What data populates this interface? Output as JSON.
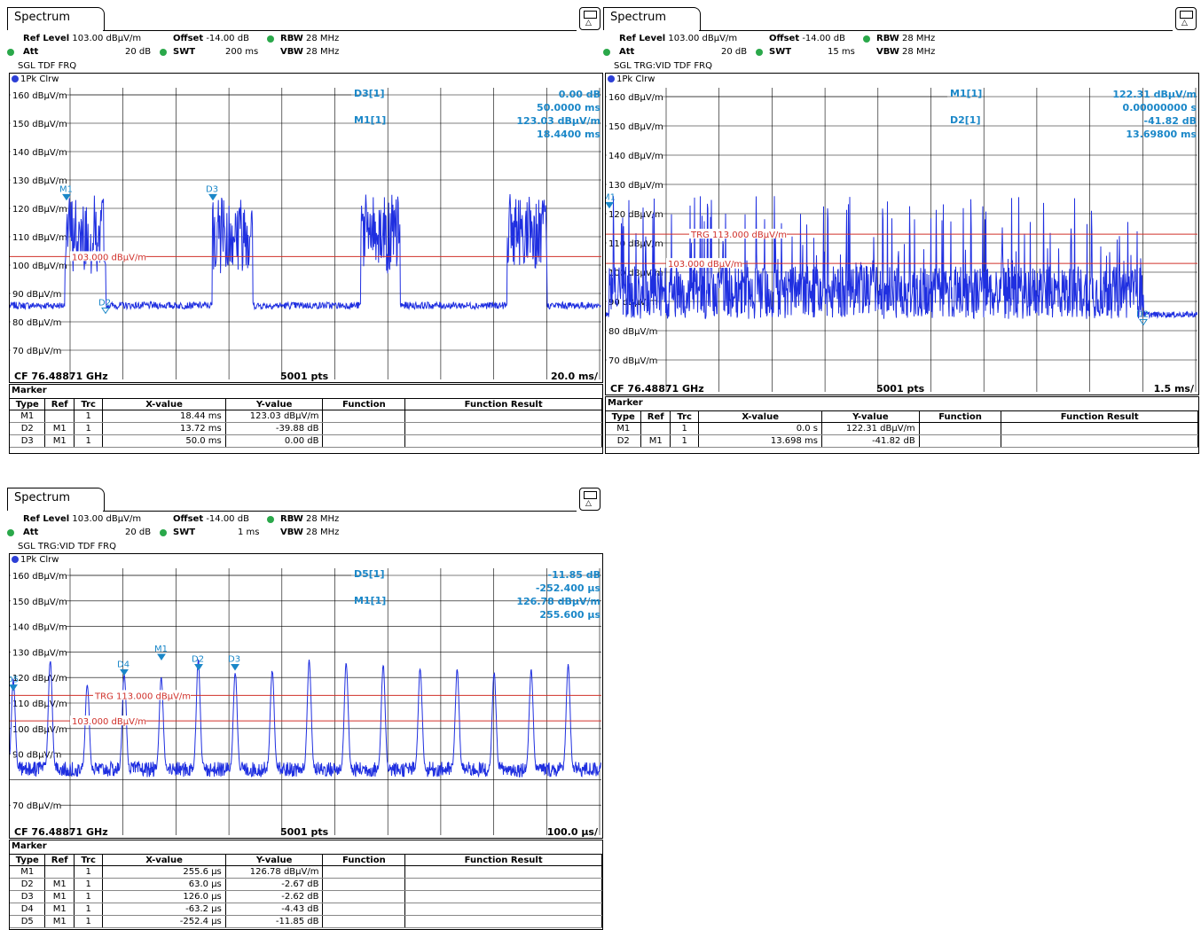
{
  "panels": [
    {
      "id": "p1",
      "tab": "Spectrum",
      "ref_level_label": "Ref Level",
      "ref_level": "103.00 dBµV/m",
      "offset_label": "Offset",
      "offset": "-14.00 dB",
      "rbw_label": "RBW",
      "rbw": "28 MHz",
      "att_label": "Att",
      "att": "20 dB",
      "swt_label": "SWT",
      "swt": "200 ms",
      "vbw_label": "VBW",
      "vbw": "28 MHz",
      "mode": "SGL TDF FRQ",
      "trace": "1Pk Clrw",
      "y_labels": [
        "160 dBµV/m",
        "150 dBµV/m",
        "140 dBµV/m",
        "130 dBµV/m",
        "120 dBµV/m",
        "110 dBµV/m",
        "100 dBµV/m",
        "90 dBµV/m",
        "80 dBµV/m",
        "70 dBµV/m"
      ],
      "marker_info": [
        {
          "name": "D3[1]",
          "l1": "0.00 dB",
          "l2": "50.0000 ms"
        },
        {
          "name": "M1[1]",
          "l1": "123.03 dBµV/m",
          "l2": "18.4400 ms"
        }
      ],
      "lines": [
        {
          "label": "103.000 dBµV/m",
          "level": 103,
          "color": "#d0302a"
        }
      ],
      "markers_on_plot": [
        "M1",
        "D2",
        "D3"
      ],
      "footer": {
        "cf": "CF 76.48871 GHz",
        "pts": "5001 pts",
        "div": "20.0 ms/"
      },
      "table": {
        "title": "Marker",
        "headers": [
          "Type",
          "Ref",
          "Trc",
          "X-value",
          "Y-value",
          "Function",
          "Function Result"
        ],
        "rows": [
          [
            "M1",
            "",
            "1",
            "18.44 ms",
            "123.03 dBµV/m",
            "",
            ""
          ],
          [
            "D2",
            "M1",
            "1",
            "13.72 ms",
            "-39.88 dB",
            "",
            ""
          ],
          [
            "D3",
            "M1",
            "1",
            "50.0 ms",
            "0.00 dB",
            "",
            ""
          ]
        ]
      }
    },
    {
      "id": "p2",
      "tab": "Spectrum",
      "ref_level_label": "Ref Level",
      "ref_level": "103.00 dBµV/m",
      "offset_label": "Offset",
      "offset": "-14.00 dB",
      "rbw_label": "RBW",
      "rbw": "28 MHz",
      "att_label": "Att",
      "att": "20 dB",
      "swt_label": "SWT",
      "swt": "15 ms",
      "vbw_label": "VBW",
      "vbw": "28 MHz",
      "mode": "SGL TRG:VID TDF FRQ",
      "trace": "1Pk Clrw",
      "y_labels": [
        "160 dBµV/m",
        "150 dBµV/m",
        "140 dBµV/m",
        "130 dBµV/m",
        "120 dBµV/m",
        "110 dBµV/m",
        "100 dBµV/m",
        "90 dBµV/m",
        "80 dBµV/m",
        "70 dBµV/m"
      ],
      "marker_info": [
        {
          "name": "M1[1]",
          "l1": "122.31 dBµV/m",
          "l2": "0.00000000 s"
        },
        {
          "name": "D2[1]",
          "l1": "-41.82 dB",
          "l2": "13.69800 ms"
        }
      ],
      "lines": [
        {
          "label": "TRG 113.000 dBµV/m",
          "level": 113,
          "color": "#d0302a"
        },
        {
          "label": "103.000 dBµV/m",
          "level": 103,
          "color": "#d0302a"
        }
      ],
      "markers_on_plot": [
        "M1",
        "D2"
      ],
      "footer": {
        "cf": "CF 76.48871 GHz",
        "pts": "5001 pts",
        "div": "1.5 ms/"
      },
      "table": {
        "title": "Marker",
        "headers": [
          "Type",
          "Ref",
          "Trc",
          "X-value",
          "Y-value",
          "Function",
          "Function Result"
        ],
        "rows": [
          [
            "M1",
            "",
            "1",
            "0.0 s",
            "122.31 dBµV/m",
            "",
            ""
          ],
          [
            "D2",
            "M1",
            "1",
            "13.698 ms",
            "-41.82 dB",
            "",
            ""
          ]
        ]
      }
    },
    {
      "id": "p3",
      "tab": "Spectrum",
      "ref_level_label": "Ref Level",
      "ref_level": "103.00 dBµV/m",
      "offset_label": "Offset",
      "offset": "-14.00 dB",
      "rbw_label": "RBW",
      "rbw": "28 MHz",
      "att_label": "Att",
      "att": "20 dB",
      "swt_label": "SWT",
      "swt": "1 ms",
      "vbw_label": "VBW",
      "vbw": "28 MHz",
      "mode": "SGL TRG:VID TDF FRQ",
      "trace": "1Pk Clrw",
      "y_labels": [
        "160 dBµV/m",
        "150 dBµV/m",
        "140 dBµV/m",
        "130 dBµV/m",
        "120 dBµV/m",
        "110 dBµV/m",
        "100 dBµV/m",
        "90 dBµV/m",
        "",
        "70 dBµV/m"
      ],
      "marker_info": [
        {
          "name": "D5[1]",
          "l1": "-11.85 dB",
          "l2": "-252.400 µs"
        },
        {
          "name": "M1[1]",
          "l1": "126.78 dBµV/m",
          "l2": "255.600 µs"
        }
      ],
      "lines": [
        {
          "label": "TRG 113.000 dBµV/m",
          "level": 113,
          "color": "#d0302a"
        },
        {
          "label": "103.000 dBµV/m",
          "level": 103,
          "color": "#d0302a"
        }
      ],
      "markers_on_plot": [
        "M1",
        "D2",
        "D3",
        "D4",
        "D5"
      ],
      "footer": {
        "cf": "CF 76.48871 GHz",
        "pts": "5001 pts",
        "div": "100.0 µs/"
      },
      "table": {
        "title": "Marker",
        "headers": [
          "Type",
          "Ref",
          "Trc",
          "X-value",
          "Y-value",
          "Function",
          "Function Result"
        ],
        "rows": [
          [
            "M1",
            "",
            "1",
            "255.6 µs",
            "126.78 dBµV/m",
            "",
            ""
          ],
          [
            "D2",
            "M1",
            "1",
            "63.0 µs",
            "-2.67 dB",
            "",
            ""
          ],
          [
            "D3",
            "M1",
            "1",
            "126.0 µs",
            "-2.62 dB",
            "",
            ""
          ],
          [
            "D4",
            "M1",
            "1",
            "-63.2 µs",
            "-4.43 dB",
            "",
            ""
          ],
          [
            "D5",
            "M1",
            "1",
            "-252.4 µs",
            "-11.85 dB",
            "",
            ""
          ]
        ]
      }
    }
  ],
  "colors": {
    "trace": "#1f2fe0",
    "line": "#d0302a",
    "marker": "#1a87c8",
    "led": "#2aa84a"
  }
}
